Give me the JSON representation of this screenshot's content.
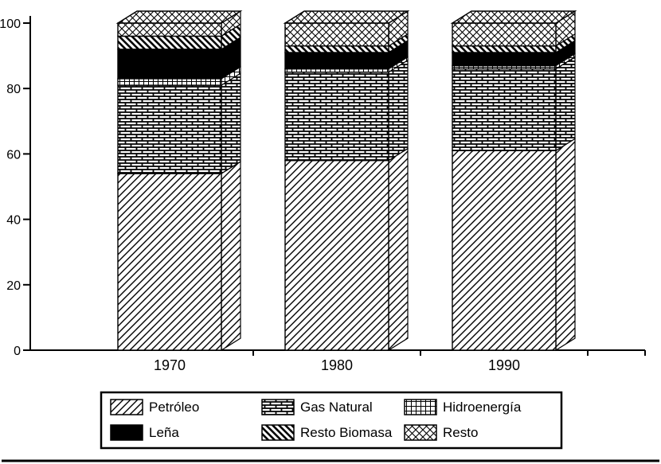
{
  "page": {
    "background": "#ffffff",
    "ink": "#000000"
  },
  "chart_data": {
    "type": "bar",
    "stacked": true,
    "effect_3d": true,
    "title": "",
    "xlabel": "",
    "ylabel": "",
    "categories": [
      "1970",
      "1980",
      "1990"
    ],
    "series": [
      {
        "name": "Petróleo",
        "pattern": "diag-forward",
        "values": [
          54,
          58,
          61
        ]
      },
      {
        "name": "Gas Natural",
        "pattern": "brick",
        "values": [
          27,
          27,
          25
        ]
      },
      {
        "name": "Hidroenergía",
        "pattern": "grid",
        "values": [
          2,
          1,
          1
        ]
      },
      {
        "name": "Leña",
        "pattern": "solid-black",
        "values": [
          9,
          5,
          4
        ]
      },
      {
        "name": "Resto Biomasa",
        "pattern": "diag-back",
        "values": [
          4,
          2,
          2
        ]
      },
      {
        "name": "Resto",
        "pattern": "diamond",
        "values": [
          4,
          7,
          7
        ]
      }
    ],
    "ylim": [
      0,
      100
    ],
    "yticks": [
      0,
      20,
      40,
      60,
      80,
      100
    ],
    "grid": false,
    "legend_position": "bottom",
    "legend_order": [
      "Petróleo",
      "Gas Natural",
      "Hidroenergía",
      "Leña",
      "Resto Biomasa",
      "Resto"
    ],
    "colors": {
      "ink": "#000000",
      "paper": "#ffffff"
    }
  }
}
